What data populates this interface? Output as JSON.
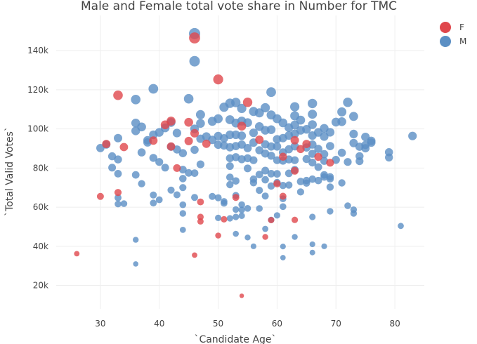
{
  "chart_data": {
    "type": "scatter",
    "title": "Male and Female total vote share in Number for TMC",
    "xlabel": "`Candidate Age`",
    "ylabel": "`Total Valid Votes`",
    "xlim": [
      22.5,
      85
    ],
    "ylim": [
      8000,
      158000
    ],
    "x_ticks": [
      30,
      40,
      50,
      60,
      70,
      80
    ],
    "y_ticks": [
      20000,
      40000,
      60000,
      80000,
      100000,
      120000,
      140000
    ],
    "y_tick_labels": [
      "20k",
      "40k",
      "60k",
      "80k",
      "100k",
      "120k",
      "140k"
    ],
    "grid": true,
    "legend_position": "top-right",
    "colors": {
      "F": "#e0474c",
      "M": "#5b8fc4"
    },
    "series": [
      {
        "name": "F",
        "points": [
          [
            26,
            36200
          ],
          [
            30,
            65500
          ],
          [
            31,
            92300
          ],
          [
            33,
            117200
          ],
          [
            33,
            67500
          ],
          [
            34,
            90700
          ],
          [
            39,
            94000
          ],
          [
            41,
            102100
          ],
          [
            42,
            104000
          ],
          [
            42,
            91000
          ],
          [
            43,
            80000
          ],
          [
            45,
            103400
          ],
          [
            45,
            93800
          ],
          [
            46,
            146500
          ],
          [
            46,
            97800
          ],
          [
            46,
            35500
          ],
          [
            47,
            62700
          ],
          [
            47,
            55000
          ],
          [
            47,
            52700
          ],
          [
            48,
            92400
          ],
          [
            50,
            125300
          ],
          [
            50,
            45500
          ],
          [
            51,
            53800
          ],
          [
            53,
            65000
          ],
          [
            54,
            101400
          ],
          [
            54,
            14700
          ],
          [
            55,
            113600
          ],
          [
            57,
            94500
          ],
          [
            58,
            44800
          ],
          [
            59,
            53400
          ],
          [
            60,
            72000
          ],
          [
            61,
            65600
          ],
          [
            61,
            85800
          ],
          [
            63,
            94200
          ],
          [
            63,
            78600
          ],
          [
            63,
            53500
          ],
          [
            64,
            89700
          ],
          [
            65,
            92300
          ],
          [
            67,
            85700
          ],
          [
            69,
            82700
          ]
        ]
      },
      {
        "name": "M",
        "points": [
          [
            30,
            90200
          ],
          [
            31,
            92000
          ],
          [
            32,
            86000
          ],
          [
            32,
            80200
          ],
          [
            33,
            95300
          ],
          [
            33,
            84400
          ],
          [
            33,
            77100
          ],
          [
            33,
            64800
          ],
          [
            33,
            61600
          ],
          [
            34,
            61800
          ],
          [
            36,
            115000
          ],
          [
            36,
            103000
          ],
          [
            36,
            99000
          ],
          [
            36,
            76500
          ],
          [
            36,
            43300
          ],
          [
            36,
            31000
          ],
          [
            37,
            101000
          ],
          [
            37,
            88000
          ],
          [
            37,
            72000
          ],
          [
            38,
            94200
          ],
          [
            38,
            93100
          ],
          [
            39,
            120500
          ],
          [
            39,
            97000
          ],
          [
            39,
            85200
          ],
          [
            39,
            66200
          ],
          [
            39,
            62100
          ],
          [
            40,
            98200
          ],
          [
            40,
            83100
          ],
          [
            40,
            63800
          ],
          [
            41,
            100500
          ],
          [
            41,
            80200
          ],
          [
            42,
            103300
          ],
          [
            42,
            90900
          ],
          [
            42,
            68700
          ],
          [
            43,
            97900
          ],
          [
            43,
            89500
          ],
          [
            43,
            66300
          ],
          [
            44,
            87600
          ],
          [
            44,
            79200
          ],
          [
            44,
            74600
          ],
          [
            44,
            70000
          ],
          [
            44,
            61200
          ],
          [
            44,
            56800
          ],
          [
            44,
            48400
          ],
          [
            45,
            115400
          ],
          [
            45,
            77500
          ],
          [
            46,
            148700
          ],
          [
            46,
            134600
          ],
          [
            46,
            100000
          ],
          [
            46,
            89300
          ],
          [
            46,
            77400
          ],
          [
            46,
            65000
          ],
          [
            47,
            107300
          ],
          [
            47,
            102800
          ],
          [
            47,
            95000
          ],
          [
            47,
            81900
          ],
          [
            48,
            96100
          ],
          [
            49,
            103900
          ],
          [
            49,
            94400
          ],
          [
            49,
            65500
          ],
          [
            50,
            105200
          ],
          [
            50,
            96300
          ],
          [
            50,
            91900
          ],
          [
            50,
            64800
          ],
          [
            50,
            54500
          ],
          [
            51,
            111100
          ],
          [
            51,
            95200
          ],
          [
            51,
            91500
          ],
          [
            51,
            62000
          ],
          [
            51,
            62900
          ],
          [
            52,
            113100
          ],
          [
            52,
            104700
          ],
          [
            52,
            97000
          ],
          [
            52,
            90600
          ],
          [
            52,
            85000
          ],
          [
            52,
            81000
          ],
          [
            52,
            75300
          ],
          [
            52,
            71500
          ],
          [
            52,
            54300
          ],
          [
            53,
            113500
          ],
          [
            53,
            103000
          ],
          [
            53,
            97000
          ],
          [
            53,
            91200
          ],
          [
            53,
            85600
          ],
          [
            53,
            73400
          ],
          [
            53,
            66000
          ],
          [
            53,
            58800
          ],
          [
            53,
            55000
          ],
          [
            53,
            46400
          ],
          [
            54,
            110500
          ],
          [
            54,
            104000
          ],
          [
            54,
            96500
          ],
          [
            54,
            92000
          ],
          [
            54,
            84500
          ],
          [
            54,
            61300
          ],
          [
            54,
            58600
          ],
          [
            54,
            55600
          ],
          [
            55,
            103200
          ],
          [
            55,
            90200
          ],
          [
            55,
            85000
          ],
          [
            55,
            79800
          ],
          [
            55,
            59400
          ],
          [
            55,
            44500
          ],
          [
            56,
            108900
          ],
          [
            56,
            98000
          ],
          [
            56,
            93000
          ],
          [
            56,
            84000
          ],
          [
            56,
            74300
          ],
          [
            56,
            72500
          ],
          [
            56,
            40000
          ],
          [
            57,
            108200
          ],
          [
            57,
            101200
          ],
          [
            57,
            89100
          ],
          [
            57,
            76700
          ],
          [
            57,
            68600
          ],
          [
            57,
            59300
          ],
          [
            58,
            110800
          ],
          [
            58,
            99300
          ],
          [
            58,
            92100
          ],
          [
            58,
            87400
          ],
          [
            58,
            78700
          ],
          [
            58,
            74000
          ],
          [
            58,
            65700
          ],
          [
            58,
            48900
          ],
          [
            59,
            118800
          ],
          [
            59,
            107100
          ],
          [
            59,
            99600
          ],
          [
            59,
            91000
          ],
          [
            59,
            86300
          ],
          [
            59,
            77100
          ],
          [
            59,
            70800
          ],
          [
            59,
            53500
          ],
          [
            60,
            105200
          ],
          [
            60,
            94700
          ],
          [
            60,
            91000
          ],
          [
            60,
            84000
          ],
          [
            60,
            77000
          ],
          [
            60,
            72600
          ],
          [
            60,
            55800
          ],
          [
            61,
            103100
          ],
          [
            61,
            95300
          ],
          [
            61,
            88000
          ],
          [
            61,
            83700
          ],
          [
            61,
            71100
          ],
          [
            61,
            64300
          ],
          [
            61,
            60300
          ],
          [
            61,
            39900
          ],
          [
            61,
            34200
          ],
          [
            62,
            100700
          ],
          [
            62,
            96600
          ],
          [
            62,
            89600
          ],
          [
            62,
            84400
          ],
          [
            62,
            77300
          ],
          [
            62,
            71300
          ],
          [
            63,
            111300
          ],
          [
            63,
            106700
          ],
          [
            63,
            102000
          ],
          [
            63,
            97500
          ],
          [
            63,
            91100
          ],
          [
            63,
            84000
          ],
          [
            63,
            79100
          ],
          [
            63,
            44800
          ],
          [
            64,
            104500
          ],
          [
            64,
            99300
          ],
          [
            64,
            73100
          ],
          [
            64,
            67800
          ],
          [
            65,
            99800
          ],
          [
            65,
            90500
          ],
          [
            65,
            84600
          ],
          [
            65,
            73600
          ],
          [
            65,
            72300
          ],
          [
            66,
            113000
          ],
          [
            66,
            107500
          ],
          [
            66,
            102200
          ],
          [
            66,
            96600
          ],
          [
            66,
            92000
          ],
          [
            66,
            87300
          ],
          [
            66,
            82800
          ],
          [
            66,
            74300
          ],
          [
            66,
            55000
          ],
          [
            66,
            41000
          ],
          [
            66,
            36800
          ],
          [
            67,
            98200
          ],
          [
            67,
            89800
          ],
          [
            67,
            80500
          ],
          [
            67,
            73600
          ],
          [
            68,
            100300
          ],
          [
            68,
            96100
          ],
          [
            68,
            87100
          ],
          [
            68,
            83600
          ],
          [
            68,
            76500
          ],
          [
            68,
            75400
          ],
          [
            68,
            40000
          ],
          [
            69,
            98300
          ],
          [
            69,
            91200
          ],
          [
            69,
            75500
          ],
          [
            69,
            74500
          ],
          [
            69,
            70300
          ],
          [
            69,
            57900
          ],
          [
            70,
            103500
          ],
          [
            70,
            84200
          ],
          [
            71,
            108700
          ],
          [
            71,
            103700
          ],
          [
            71,
            87800
          ],
          [
            71,
            72400
          ],
          [
            72,
            113600
          ],
          [
            72,
            83100
          ],
          [
            72,
            60700
          ],
          [
            73,
            106400
          ],
          [
            73,
            97400
          ],
          [
            73,
            92800
          ],
          [
            73,
            58700
          ],
          [
            73,
            56800
          ],
          [
            74,
            90900
          ],
          [
            74,
            86100
          ],
          [
            74,
            83500
          ],
          [
            75,
            95900
          ],
          [
            75,
            91800
          ],
          [
            75,
            90100
          ],
          [
            76,
            93900
          ],
          [
            76,
            93000
          ],
          [
            79,
            88100
          ],
          [
            79,
            85400
          ],
          [
            81,
            50400
          ],
          [
            83,
            96400
          ]
        ]
      }
    ]
  }
}
